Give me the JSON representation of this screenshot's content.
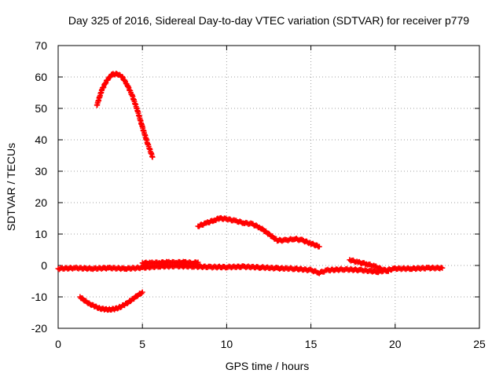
{
  "colors": {
    "series": "#ff0000",
    "grid": "#a0a0a0",
    "axis": "#000000",
    "background": "#ffffff"
  },
  "chart_data": {
    "type": "scatter",
    "title": "Day 325 of 2016, Sidereal Day-to-day VTEC variation (SDTVAR) for receiver p779",
    "xlabel": "GPS time / hours",
    "ylabel": "SDTVAR / TECUs",
    "xlim": [
      0,
      25
    ],
    "ylim": [
      -20,
      70
    ],
    "xticks": [
      0,
      5,
      10,
      15,
      20,
      25
    ],
    "yticks": [
      -20,
      -10,
      0,
      10,
      20,
      30,
      40,
      50,
      60,
      70
    ],
    "grid": true,
    "marker": "cross",
    "series": [
      {
        "name": "arc-high",
        "x": [
          2.3,
          2.6,
          2.9,
          3.2,
          3.5,
          3.8,
          4.1,
          4.4,
          4.7,
          5.0,
          5.3,
          5.6
        ],
        "y": [
          51,
          56,
          59,
          60.8,
          61,
          60,
          57.5,
          54,
          49.5,
          44,
          39,
          34.5
        ]
      },
      {
        "name": "arc-low",
        "x": [
          1.3,
          1.6,
          1.9,
          2.2,
          2.5,
          2.8,
          3.1,
          3.4,
          3.7,
          4.0,
          4.3,
          4.6,
          5.0
        ],
        "y": [
          -10,
          -11.3,
          -12.3,
          -13.1,
          -13.7,
          -14,
          -14,
          -13.8,
          -13.2,
          -12.3,
          -11.2,
          -10,
          -8.5
        ]
      },
      {
        "name": "arc-mid",
        "x": [
          8.3,
          8.8,
          9.3,
          9.6,
          10.0,
          10.5,
          11.0,
          11.5,
          12.0,
          12.5,
          13.0,
          13.5,
          14.0,
          14.5,
          15.0,
          15.5
        ],
        "y": [
          12.5,
          13.5,
          14.5,
          15,
          14.8,
          14.2,
          13.6,
          13.2,
          12,
          10,
          8,
          8,
          8.5,
          8,
          7,
          6
        ]
      },
      {
        "name": "baseline",
        "x": [
          0,
          1,
          2,
          3,
          4,
          5,
          6,
          7,
          8,
          9,
          10,
          11,
          12,
          13,
          14,
          15,
          15.5,
          16,
          17,
          18,
          19,
          20,
          21,
          22,
          22.8
        ],
        "y": [
          -1,
          -0.8,
          -1,
          -0.8,
          -1,
          -0.7,
          -0.3,
          -0.2,
          -0.3,
          -0.5,
          -0.5,
          -0.4,
          -0.6,
          -0.9,
          -1,
          -1.5,
          -2.3,
          -1.5,
          -1.2,
          -1.5,
          -2,
          -1,
          -1,
          -0.8,
          -0.8
        ]
      },
      {
        "name": "band-near-zero",
        "x": [
          5.0,
          5.5,
          6.0,
          6.5,
          7.0,
          7.5,
          8.0,
          8.3
        ],
        "y": [
          0.8,
          0.8,
          0.9,
          1,
          1,
          1,
          0.8,
          1
        ]
      },
      {
        "name": "tail-right",
        "x": [
          17.3,
          17.8,
          18.3,
          18.8,
          19.2,
          19.6
        ],
        "y": [
          1.8,
          1,
          0.5,
          -0.3,
          -1.2,
          -1.8
        ]
      }
    ]
  }
}
